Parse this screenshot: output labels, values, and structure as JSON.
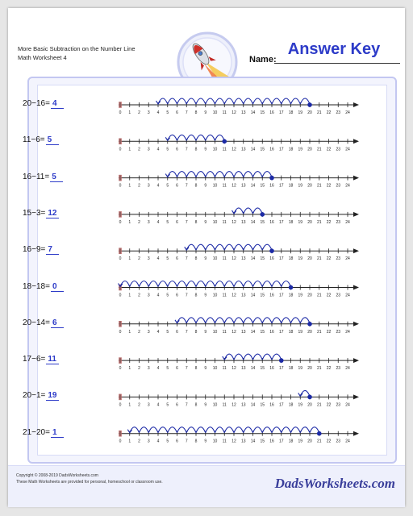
{
  "header": {
    "title_line1": "More Basic Subtraction on the Number Line",
    "title_line2": "Math Worksheet 4",
    "name_label": "Name:",
    "answer_key": "Answer Key"
  },
  "number_line": {
    "min": 0,
    "max": 24,
    "tick_labels": [
      "0",
      "1",
      "2",
      "3",
      "4",
      "5",
      "6",
      "7",
      "8",
      "9",
      "10",
      "11",
      "12",
      "13",
      "14",
      "15",
      "16",
      "17",
      "18",
      "19",
      "20",
      "21",
      "22",
      "23",
      "24"
    ]
  },
  "problems": [
    {
      "expr": "20−16=",
      "answer": "4",
      "start": 20,
      "end": 4
    },
    {
      "expr": "11−6=",
      "answer": "5",
      "start": 11,
      "end": 5
    },
    {
      "expr": "16−11=",
      "answer": "5",
      "start": 16,
      "end": 5
    },
    {
      "expr": "15−3=",
      "answer": "12",
      "start": 15,
      "end": 12
    },
    {
      "expr": "16−9=",
      "answer": "7",
      "start": 16,
      "end": 7
    },
    {
      "expr": "18−18=",
      "answer": "0",
      "start": 18,
      "end": 0
    },
    {
      "expr": "20−14=",
      "answer": "6",
      "start": 20,
      "end": 6
    },
    {
      "expr": "17−6=",
      "answer": "11",
      "start": 17,
      "end": 11
    },
    {
      "expr": "20−1=",
      "answer": "19",
      "start": 20,
      "end": 19
    },
    {
      "expr": "21−20=",
      "answer": "1",
      "start": 21,
      "end": 1
    }
  ],
  "footer": {
    "copyright": "Copyright © 2008-2019 DadsWorksheets.com",
    "note": "These Math Worksheets are provided for personal, homeschool or classroom use.",
    "logo": "DadsWorksheets.com"
  },
  "colors": {
    "accent": "#2d3bc8",
    "arc": "#1c2aa6",
    "panel_border": "#c3c7f1"
  },
  "icons": {
    "rocket": "rocket-icon"
  }
}
